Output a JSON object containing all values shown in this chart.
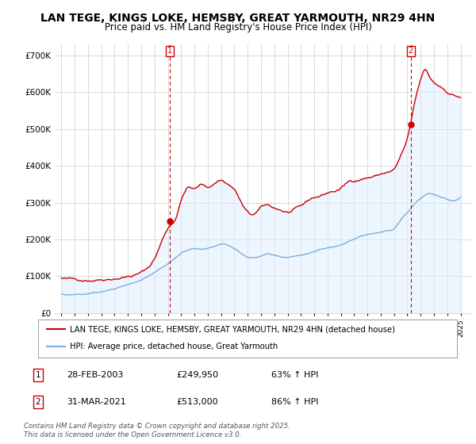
{
  "title": "LAN TEGE, KINGS LOKE, HEMSBY, GREAT YARMOUTH, NR29 4HN",
  "subtitle": "Price paid vs. HM Land Registry's House Price Index (HPI)",
  "title_fontsize": 10,
  "subtitle_fontsize": 8.5,
  "red_label": "LAN TEGE, KINGS LOKE, HEMSBY, GREAT YARMOUTH, NR29 4HN (detached house)",
  "blue_label": "HPI: Average price, detached house, Great Yarmouth",
  "annotation1": [
    "1",
    "28-FEB-2003",
    "£249,950",
    "63% ↑ HPI"
  ],
  "annotation2": [
    "2",
    "31-MAR-2021",
    "£513,000",
    "86% ↑ HPI"
  ],
  "footnote": "Contains HM Land Registry data © Crown copyright and database right 2025.\nThis data is licensed under the Open Government Licence v3.0.",
  "ylim": [
    0,
    730000
  ],
  "yticks": [
    0,
    100000,
    200000,
    300000,
    400000,
    500000,
    600000,
    700000
  ],
  "yticklabels": [
    "£0",
    "£100K",
    "£200K",
    "£300K",
    "£400K",
    "£500K",
    "£600K",
    "£700K"
  ],
  "red_color": "#cc0000",
  "blue_color": "#7aaddb",
  "shade_color": "#ddeeff",
  "marker1_x": 2003.15,
  "marker1_y": 249950,
  "marker2_x": 2021.25,
  "marker2_y": 513000,
  "vline1_x": 2003.15,
  "vline2_x": 2021.25,
  "bg_color": "#ffffff",
  "grid_color": "#cccccc",
  "xlim_left": 1994.5,
  "xlim_right": 2025.8
}
